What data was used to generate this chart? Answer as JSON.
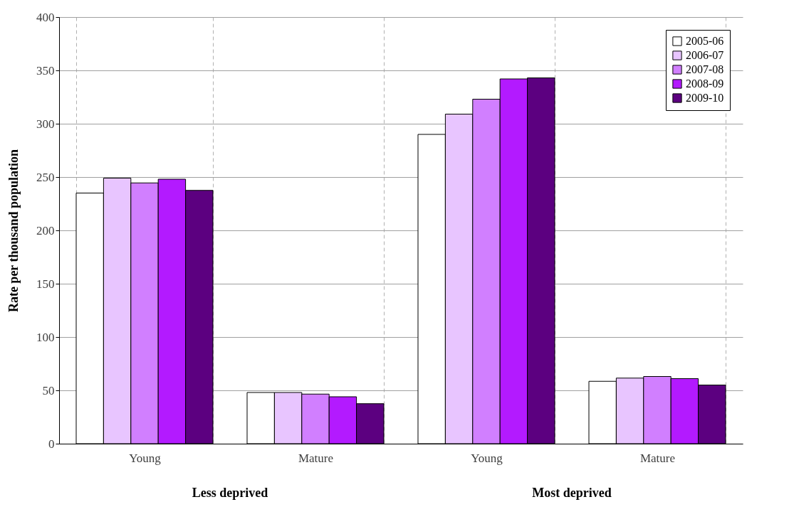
{
  "chart_data": {
    "type": "bar",
    "ylabel": "Rate per thousand population",
    "categories": [
      "Young",
      "Mature",
      "Young",
      "Mature"
    ],
    "annotations": [
      "Less deprived",
      "Most deprived"
    ],
    "series": [
      {
        "name": "2005-06",
        "color": "#ffffff",
        "values": [
          235,
          48,
          290,
          58.5
        ]
      },
      {
        "name": "2006-07",
        "color": "#e8c5ff",
        "values": [
          249,
          48,
          309,
          61.5
        ]
      },
      {
        "name": "2007-08",
        "color": "#d17fff",
        "values": [
          244.5,
          46.5,
          323,
          63
        ]
      },
      {
        "name": "2008-09",
        "color": "#b31aff",
        "values": [
          248,
          44,
          342,
          61
        ]
      },
      {
        "name": "2009-10",
        "color": "#5c0080",
        "values": [
          237.5,
          37.5,
          343,
          55
        ]
      }
    ],
    "ylim": [
      0,
      400
    ],
    "yticks": [
      0,
      50,
      100,
      150,
      200,
      250,
      300,
      350,
      400
    ],
    "grid": true,
    "legend": "top right"
  }
}
